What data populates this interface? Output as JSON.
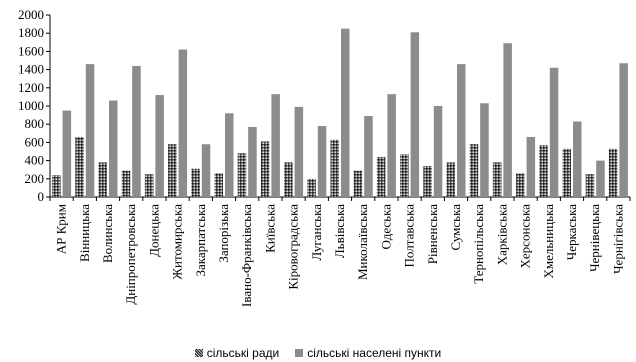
{
  "chart_data": {
    "type": "bar",
    "title": "",
    "xlabel": "",
    "ylabel": "",
    "ylim": [
      0,
      2000
    ],
    "yticks": [
      0,
      200,
      400,
      600,
      800,
      1000,
      1200,
      1400,
      1600,
      1800,
      2000
    ],
    "grid": false,
    "legend_position": "bottom",
    "categories": [
      "АР Крим",
      "Вінницька",
      "Волинська",
      "Дніпропетровська",
      "Донецька",
      "Житомирська",
      "Закарпатська",
      "Запорізька",
      "Івано-Франківська",
      "Київська",
      "Кіровоградська",
      "Луганська",
      "Львівська",
      "Миколаївська",
      "Одеська",
      "Полтавська",
      "Рівненська",
      "Сумська",
      "Тернопільська",
      "Харківська",
      "Херсонська",
      "Хмельницька",
      "Черкаська",
      "Чернівецька",
      "Чернігівська"
    ],
    "series": [
      {
        "name": "сільські ради",
        "color": "#2f2f2f",
        "pattern": "dotted",
        "values": [
          240,
          660,
          380,
          290,
          250,
          580,
          310,
          260,
          480,
          610,
          380,
          200,
          630,
          290,
          440,
          470,
          340,
          380,
          580,
          380,
          260,
          570,
          530,
          250,
          530
        ]
      },
      {
        "name": "сільські населені пункти",
        "color": "#8c8c8c",
        "pattern": "solid",
        "values": [
          950,
          1460,
          1060,
          1440,
          1120,
          1620,
          580,
          920,
          770,
          1130,
          990,
          780,
          1850,
          890,
          1130,
          1810,
          1000,
          1460,
          1030,
          1690,
          660,
          1420,
          830,
          400,
          1470
        ]
      }
    ]
  }
}
